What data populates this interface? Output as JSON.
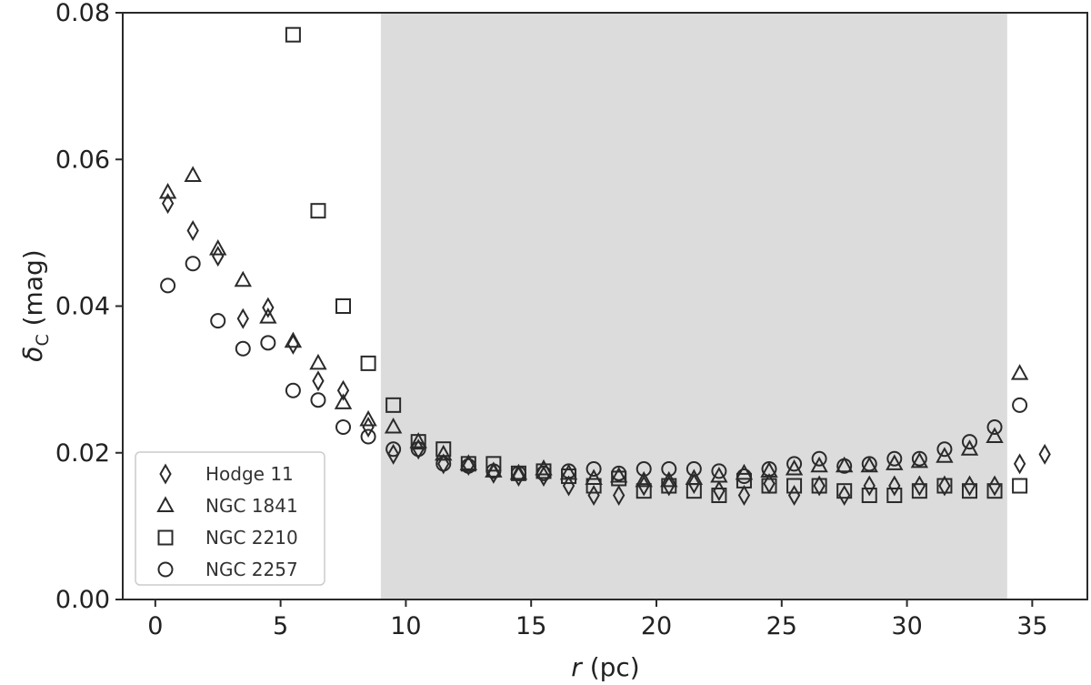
{
  "chart_data": {
    "type": "scatter",
    "xlabel_italic": "r",
    "xlabel_rest": " (pc)",
    "ylabel_main": "δ",
    "ylabel_sub": "C",
    "ylabel_rest": " (mag)",
    "xlim": [
      -1.3,
      37.2
    ],
    "ylim": [
      0.0,
      0.08
    ],
    "xticks": [
      0,
      5,
      10,
      15,
      20,
      25,
      30,
      35
    ],
    "xtick_labels": [
      "0",
      "5",
      "10",
      "15",
      "20",
      "25",
      "30",
      "35"
    ],
    "yticks": [
      0.0,
      0.02,
      0.04,
      0.06,
      0.08
    ],
    "ytick_labels": [
      "0.00",
      "0.02",
      "0.04",
      "0.06",
      "0.08"
    ],
    "shaded_region": {
      "x_start": 9.0,
      "x_end": 34.0,
      "color": "#dcdcdc"
    },
    "grid": false,
    "legend_position": "lower-left",
    "series": [
      {
        "name": "Hodge 11",
        "marker": "diamond",
        "x": [
          0.5,
          1.5,
          2.5,
          3.5,
          4.5,
          5.5,
          6.5,
          7.5,
          8.5,
          9.5,
          10.5,
          11.5,
          12.5,
          13.5,
          14.5,
          15.5,
          16.5,
          17.5,
          18.5,
          19.5,
          20.5,
          21.5,
          22.5,
          23.5,
          24.5,
          25.5,
          26.5,
          27.5,
          28.5,
          29.5,
          30.5,
          31.5,
          32.5,
          33.5,
          34.5,
          35.5
        ],
        "y": [
          0.054,
          0.0503,
          0.0468,
          0.0383,
          0.0398,
          0.0348,
          0.0298,
          0.0285,
          0.0235,
          0.0198,
          0.0205,
          0.0185,
          0.0183,
          0.0172,
          0.0168,
          0.0168,
          0.0155,
          0.0142,
          0.0142,
          0.0155,
          0.0155,
          0.0158,
          0.0148,
          0.0142,
          0.0158,
          0.0142,
          0.0155,
          0.0142,
          0.0155,
          0.0155,
          0.0155,
          0.0155,
          0.0155,
          0.0155,
          0.0185,
          0.0198
        ]
      },
      {
        "name": "NGC 1841",
        "marker": "triangle",
        "x": [
          0.5,
          1.5,
          2.5,
          3.5,
          4.5,
          5.5,
          6.5,
          7.5,
          8.5,
          9.5,
          10.5,
          11.5,
          12.5,
          13.5,
          14.5,
          15.5,
          16.5,
          17.5,
          18.5,
          19.5,
          20.5,
          21.5,
          22.5,
          23.5,
          24.5,
          25.5,
          26.5,
          27.5,
          28.5,
          29.5,
          30.5,
          31.5,
          32.5,
          33.5,
          34.5
        ],
        "y": [
          0.0555,
          0.0578,
          0.0478,
          0.0435,
          0.0385,
          0.0352,
          0.0322,
          0.0268,
          0.0245,
          0.0235,
          0.0215,
          0.0198,
          0.0185,
          0.0175,
          0.0172,
          0.0178,
          0.0172,
          0.0165,
          0.0168,
          0.0162,
          0.0162,
          0.0165,
          0.0168,
          0.0172,
          0.0175,
          0.0178,
          0.0182,
          0.0182,
          0.0182,
          0.0185,
          0.0188,
          0.0195,
          0.0205,
          0.0222,
          0.0308
        ]
      },
      {
        "name": "NGC 2210",
        "marker": "square",
        "x": [
          5.5,
          6.5,
          7.5,
          8.5,
          9.5,
          10.5,
          11.5,
          12.5,
          13.5,
          14.5,
          15.5,
          16.5,
          17.5,
          18.5,
          19.5,
          20.5,
          21.5,
          22.5,
          23.5,
          24.5,
          25.5,
          26.5,
          27.5,
          28.5,
          29.5,
          30.5,
          31.5,
          32.5,
          33.5,
          34.5
        ],
        "y": [
          0.077,
          0.053,
          0.04,
          0.0322,
          0.0265,
          0.0215,
          0.0205,
          0.0185,
          0.0185,
          0.0172,
          0.0175,
          0.0168,
          0.0155,
          0.0165,
          0.0148,
          0.0155,
          0.0148,
          0.0142,
          0.0162,
          0.0155,
          0.0155,
          0.0155,
          0.0148,
          0.0142,
          0.0142,
          0.0148,
          0.0155,
          0.0148,
          0.0148,
          0.0155
        ]
      },
      {
        "name": "NGC 2257",
        "marker": "circle",
        "x": [
          0.5,
          1.5,
          2.5,
          3.5,
          4.5,
          5.5,
          6.5,
          7.5,
          8.5,
          9.5,
          10.5,
          11.5,
          12.5,
          13.5,
          14.5,
          15.5,
          16.5,
          17.5,
          18.5,
          19.5,
          20.5,
          21.5,
          22.5,
          23.5,
          24.5,
          25.5,
          26.5,
          27.5,
          28.5,
          29.5,
          30.5,
          31.5,
          32.5,
          33.5,
          34.5
        ],
        "y": [
          0.0428,
          0.0458,
          0.038,
          0.0342,
          0.035,
          0.0285,
          0.0272,
          0.0235,
          0.0222,
          0.0205,
          0.0205,
          0.0185,
          0.0182,
          0.0175,
          0.0172,
          0.0172,
          0.0175,
          0.0178,
          0.0172,
          0.0178,
          0.0178,
          0.0178,
          0.0175,
          0.0168,
          0.0178,
          0.0185,
          0.0192,
          0.0182,
          0.0185,
          0.0192,
          0.0192,
          0.0205,
          0.0215,
          0.0235,
          0.0265
        ]
      }
    ]
  }
}
